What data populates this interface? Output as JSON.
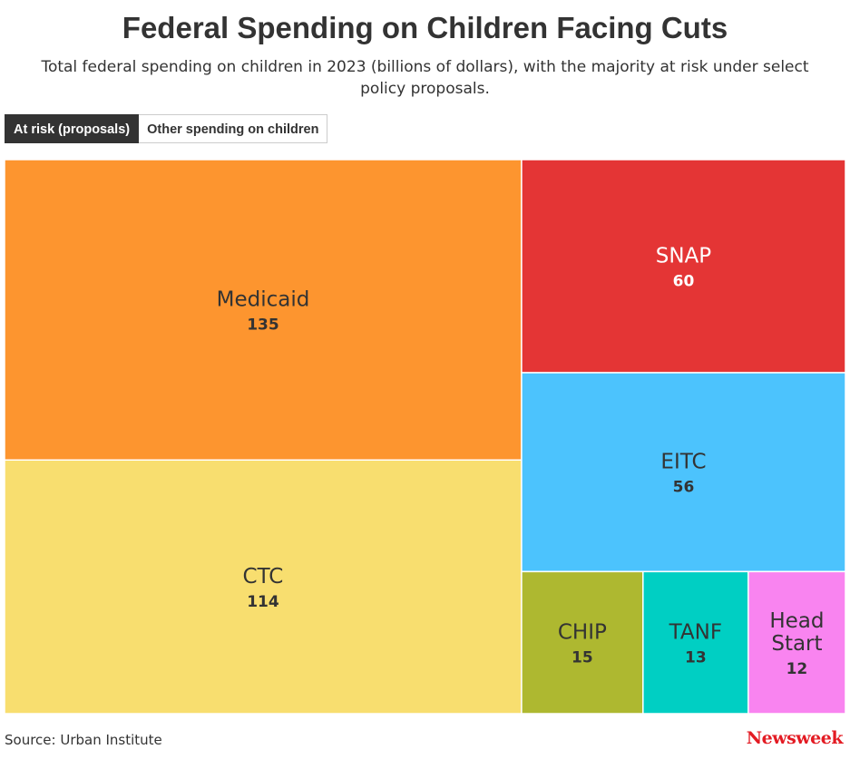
{
  "header": {
    "title": "Federal Spending on Children Facing Cuts",
    "subtitle": "Total federal spending on children in 2023 (billions of dollars), with the majority at risk under select policy proposals."
  },
  "tabs": [
    {
      "label": "At risk (proposals)",
      "active": true
    },
    {
      "label": "Other spending on children",
      "active": false
    }
  ],
  "chart_data": {
    "type": "treemap",
    "unit": "billions of dollars",
    "items": [
      {
        "name": "Medicaid",
        "value": 135,
        "color": "#fd952f",
        "text_color": "#333333"
      },
      {
        "name": "CTC",
        "value": 114,
        "color": "#f8de6f",
        "text_color": "#333333"
      },
      {
        "name": "SNAP",
        "value": 60,
        "color": "#e43535",
        "text_color": "#ffffff"
      },
      {
        "name": "EITC",
        "value": 56,
        "color": "#4cc3fd",
        "text_color": "#333333"
      },
      {
        "name": "CHIP",
        "value": 15,
        "color": "#aeb830",
        "text_color": "#333333"
      },
      {
        "name": "TANF",
        "value": 13,
        "color": "#00cfc3",
        "text_color": "#333333"
      },
      {
        "name": "Head Start",
        "value": 12,
        "color": "#f984f0",
        "text_color": "#333333"
      }
    ]
  },
  "footer": {
    "source": "Source: Urban Institute",
    "logo": "Newsweek"
  }
}
